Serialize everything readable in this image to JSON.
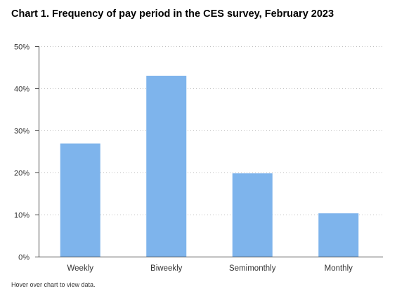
{
  "chart_title": "Chart 1. Frequency of pay period in the CES survey, February 2023",
  "footnote": "Hover over chart to view data.",
  "colors": {
    "bar": "#7eb4ec",
    "axis": "#444444",
    "grid": "#bdbdbd"
  },
  "chart_data": {
    "type": "bar",
    "title": "Chart 1. Frequency of pay period in the CES survey, February 2023",
    "categories": [
      "Weekly",
      "Biweekly",
      "Semimonthly",
      "Monthly"
    ],
    "values": [
      26.9,
      43.0,
      19.8,
      10.3
    ],
    "value_unit": "%",
    "xlabel": "",
    "ylabel": "",
    "ylim": [
      0,
      50
    ],
    "yticks": [
      0,
      10,
      20,
      30,
      40,
      50
    ],
    "ytick_labels": [
      "0%",
      "10%",
      "20%",
      "30%",
      "40%",
      "50%"
    ],
    "grid": true,
    "legend": "none"
  }
}
